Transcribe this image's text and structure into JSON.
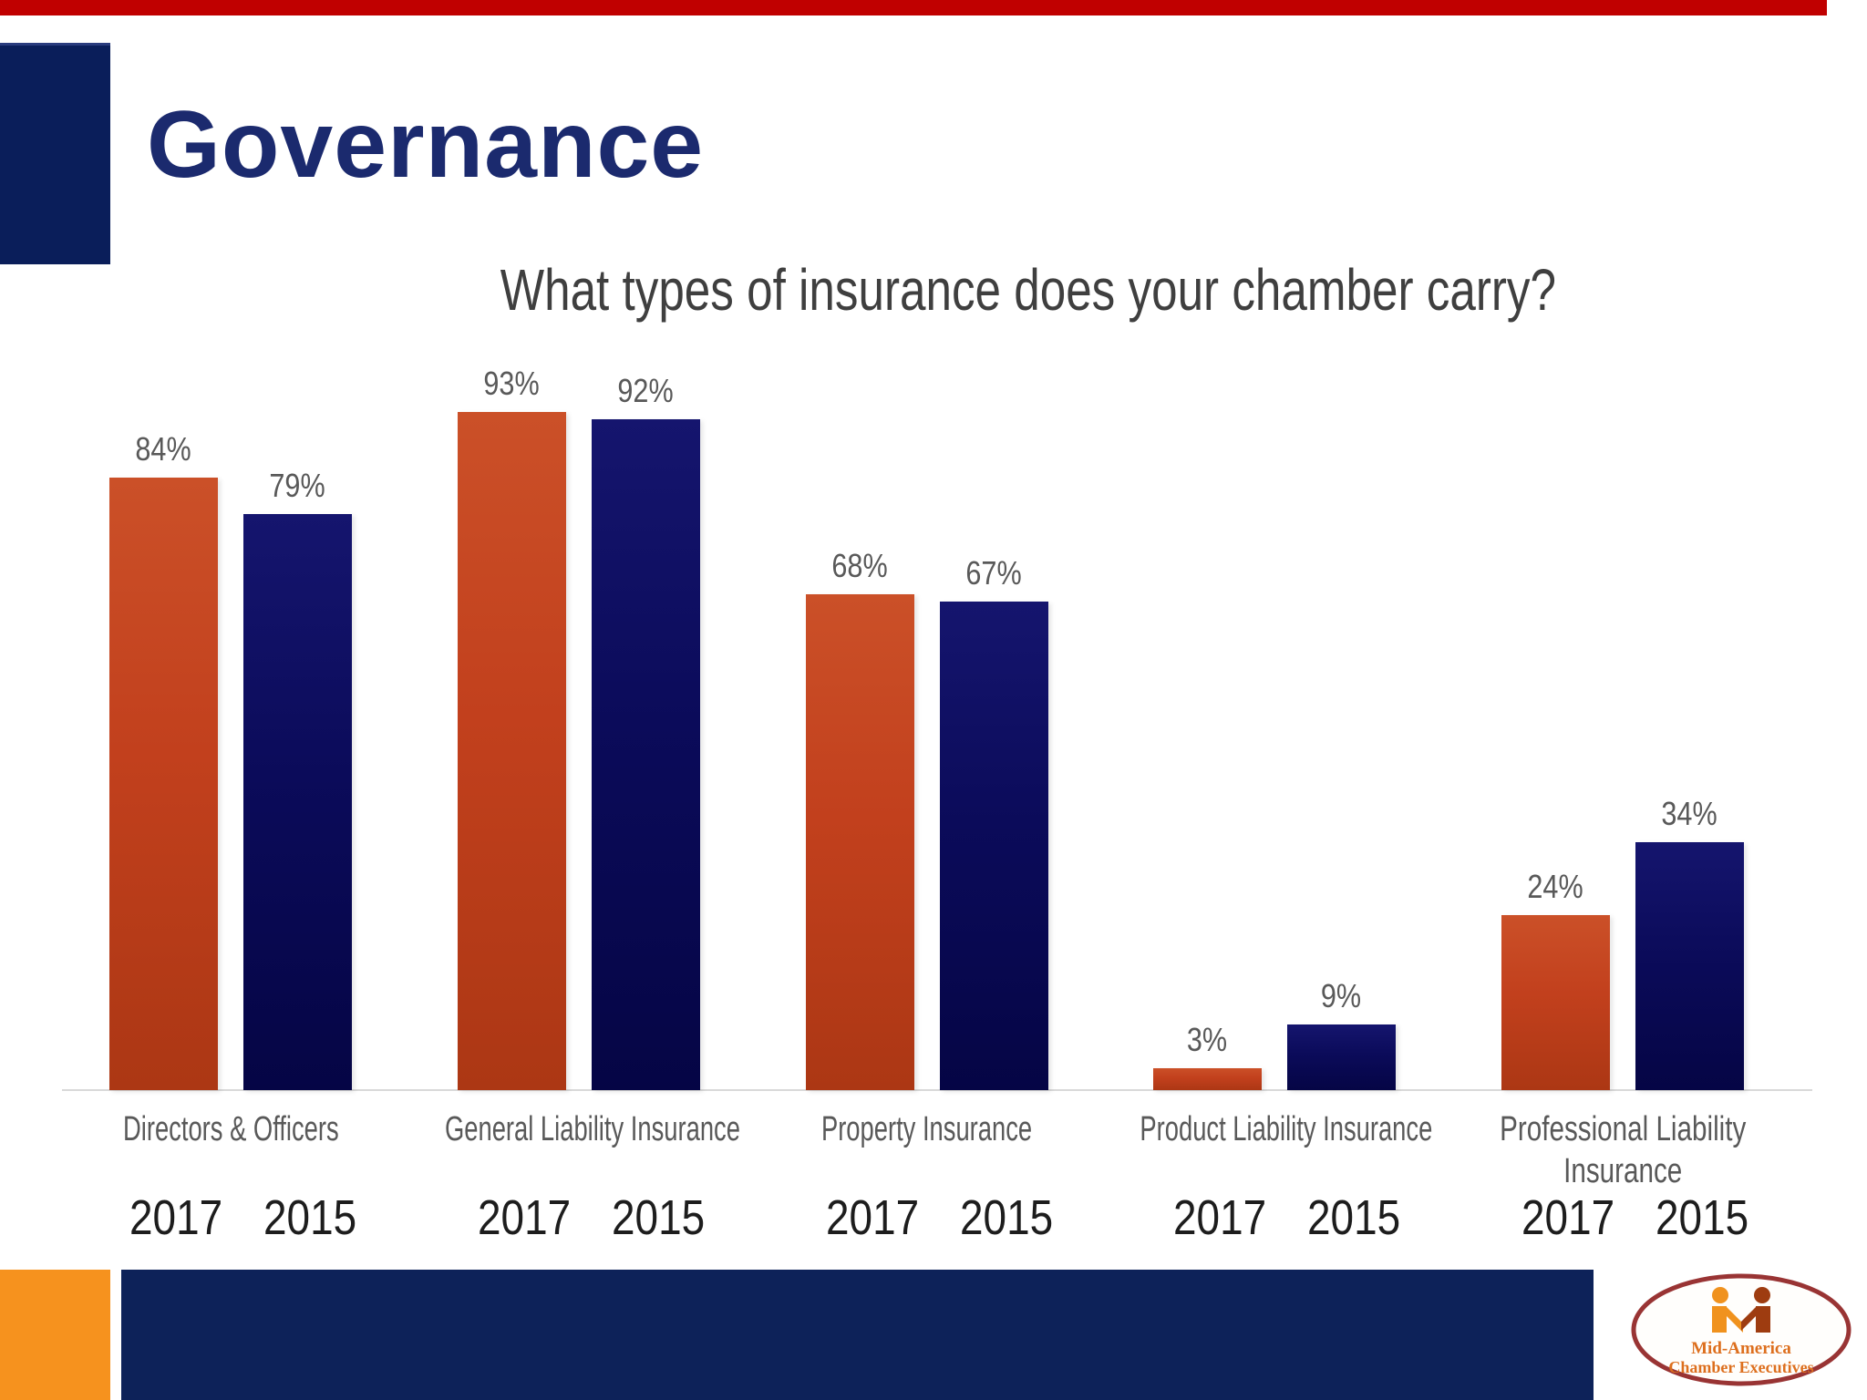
{
  "slide": {
    "title": "Governance",
    "logo": {
      "line1": "Mid-America",
      "line2": "Chamber Executives"
    }
  },
  "chart_data": {
    "type": "bar",
    "title": "What types of insurance does your chamber carry?",
    "categories": [
      "Directors & Officers",
      "General Liability Insurance",
      "Property Insurance",
      "Product Liability Insurance",
      "Professional Liability Insurance"
    ],
    "series": [
      {
        "name": "2017",
        "values": [
          84,
          93,
          68,
          3,
          24
        ],
        "color": "#C0431F"
      },
      {
        "name": "2015",
        "values": [
          79,
          92,
          67,
          9,
          34
        ],
        "color": "#0A0A5A"
      }
    ],
    "unit": "%",
    "value_labels": true,
    "ylim": [
      0,
      100
    ],
    "grid": false,
    "axis_line_color": "#D9D9D9",
    "legend_position": "years-under-each-bar"
  },
  "colors": {
    "top_bar_red": "#C00000",
    "title_navy": "#1B2A6E",
    "square_navy": "#0A1E5A",
    "footer_navy": "#0D2259",
    "footer_orange": "#F6921E",
    "label_gray": "#595959",
    "year_label_dark": "#1D1D1D",
    "logo_ring": "#993434",
    "logo_text": "#DD6F1E"
  }
}
